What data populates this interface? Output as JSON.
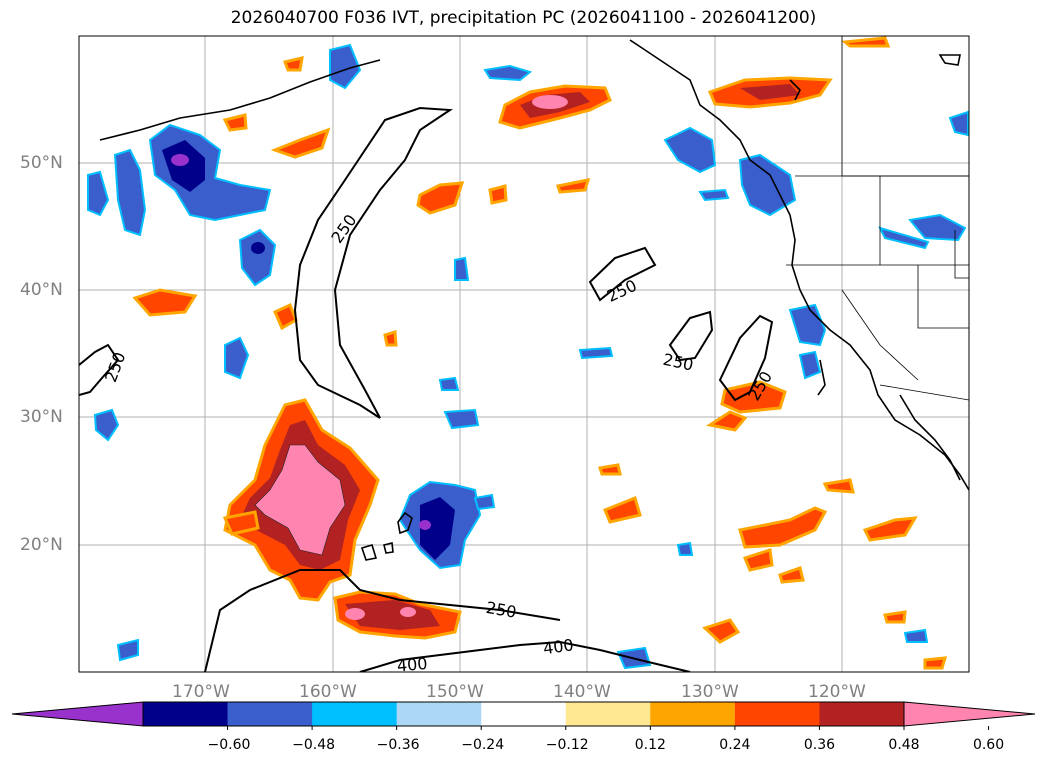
{
  "title": "2026040700 F036 IVT, precipitation PC (2026041100 - 2026041200)",
  "lat_labels": [
    "50°N",
    "40°N",
    "30°N",
    "20°N"
  ],
  "lon_labels": [
    "170°W",
    "160°W",
    "150°W",
    "140°W",
    "130°W",
    "120°W"
  ],
  "contour_labels": [
    "250",
    "250",
    "250",
    "250",
    "250",
    "250",
    "400",
    "400"
  ],
  "colorbar": {
    "ticks": [
      "−0.60",
      "−0.48",
      "−0.36",
      "−0.24",
      "−0.12",
      "0.12",
      "0.24",
      "0.36",
      "0.48",
      "0.60"
    ],
    "colors": [
      "#9932cc",
      "#00008b",
      "#3a5fcd",
      "#00bfff",
      "#add8f5",
      "#ffffff",
      "#ffe88f",
      "#ffa500",
      "#ff4500",
      "#b22222",
      "#ff85b0"
    ]
  }
}
